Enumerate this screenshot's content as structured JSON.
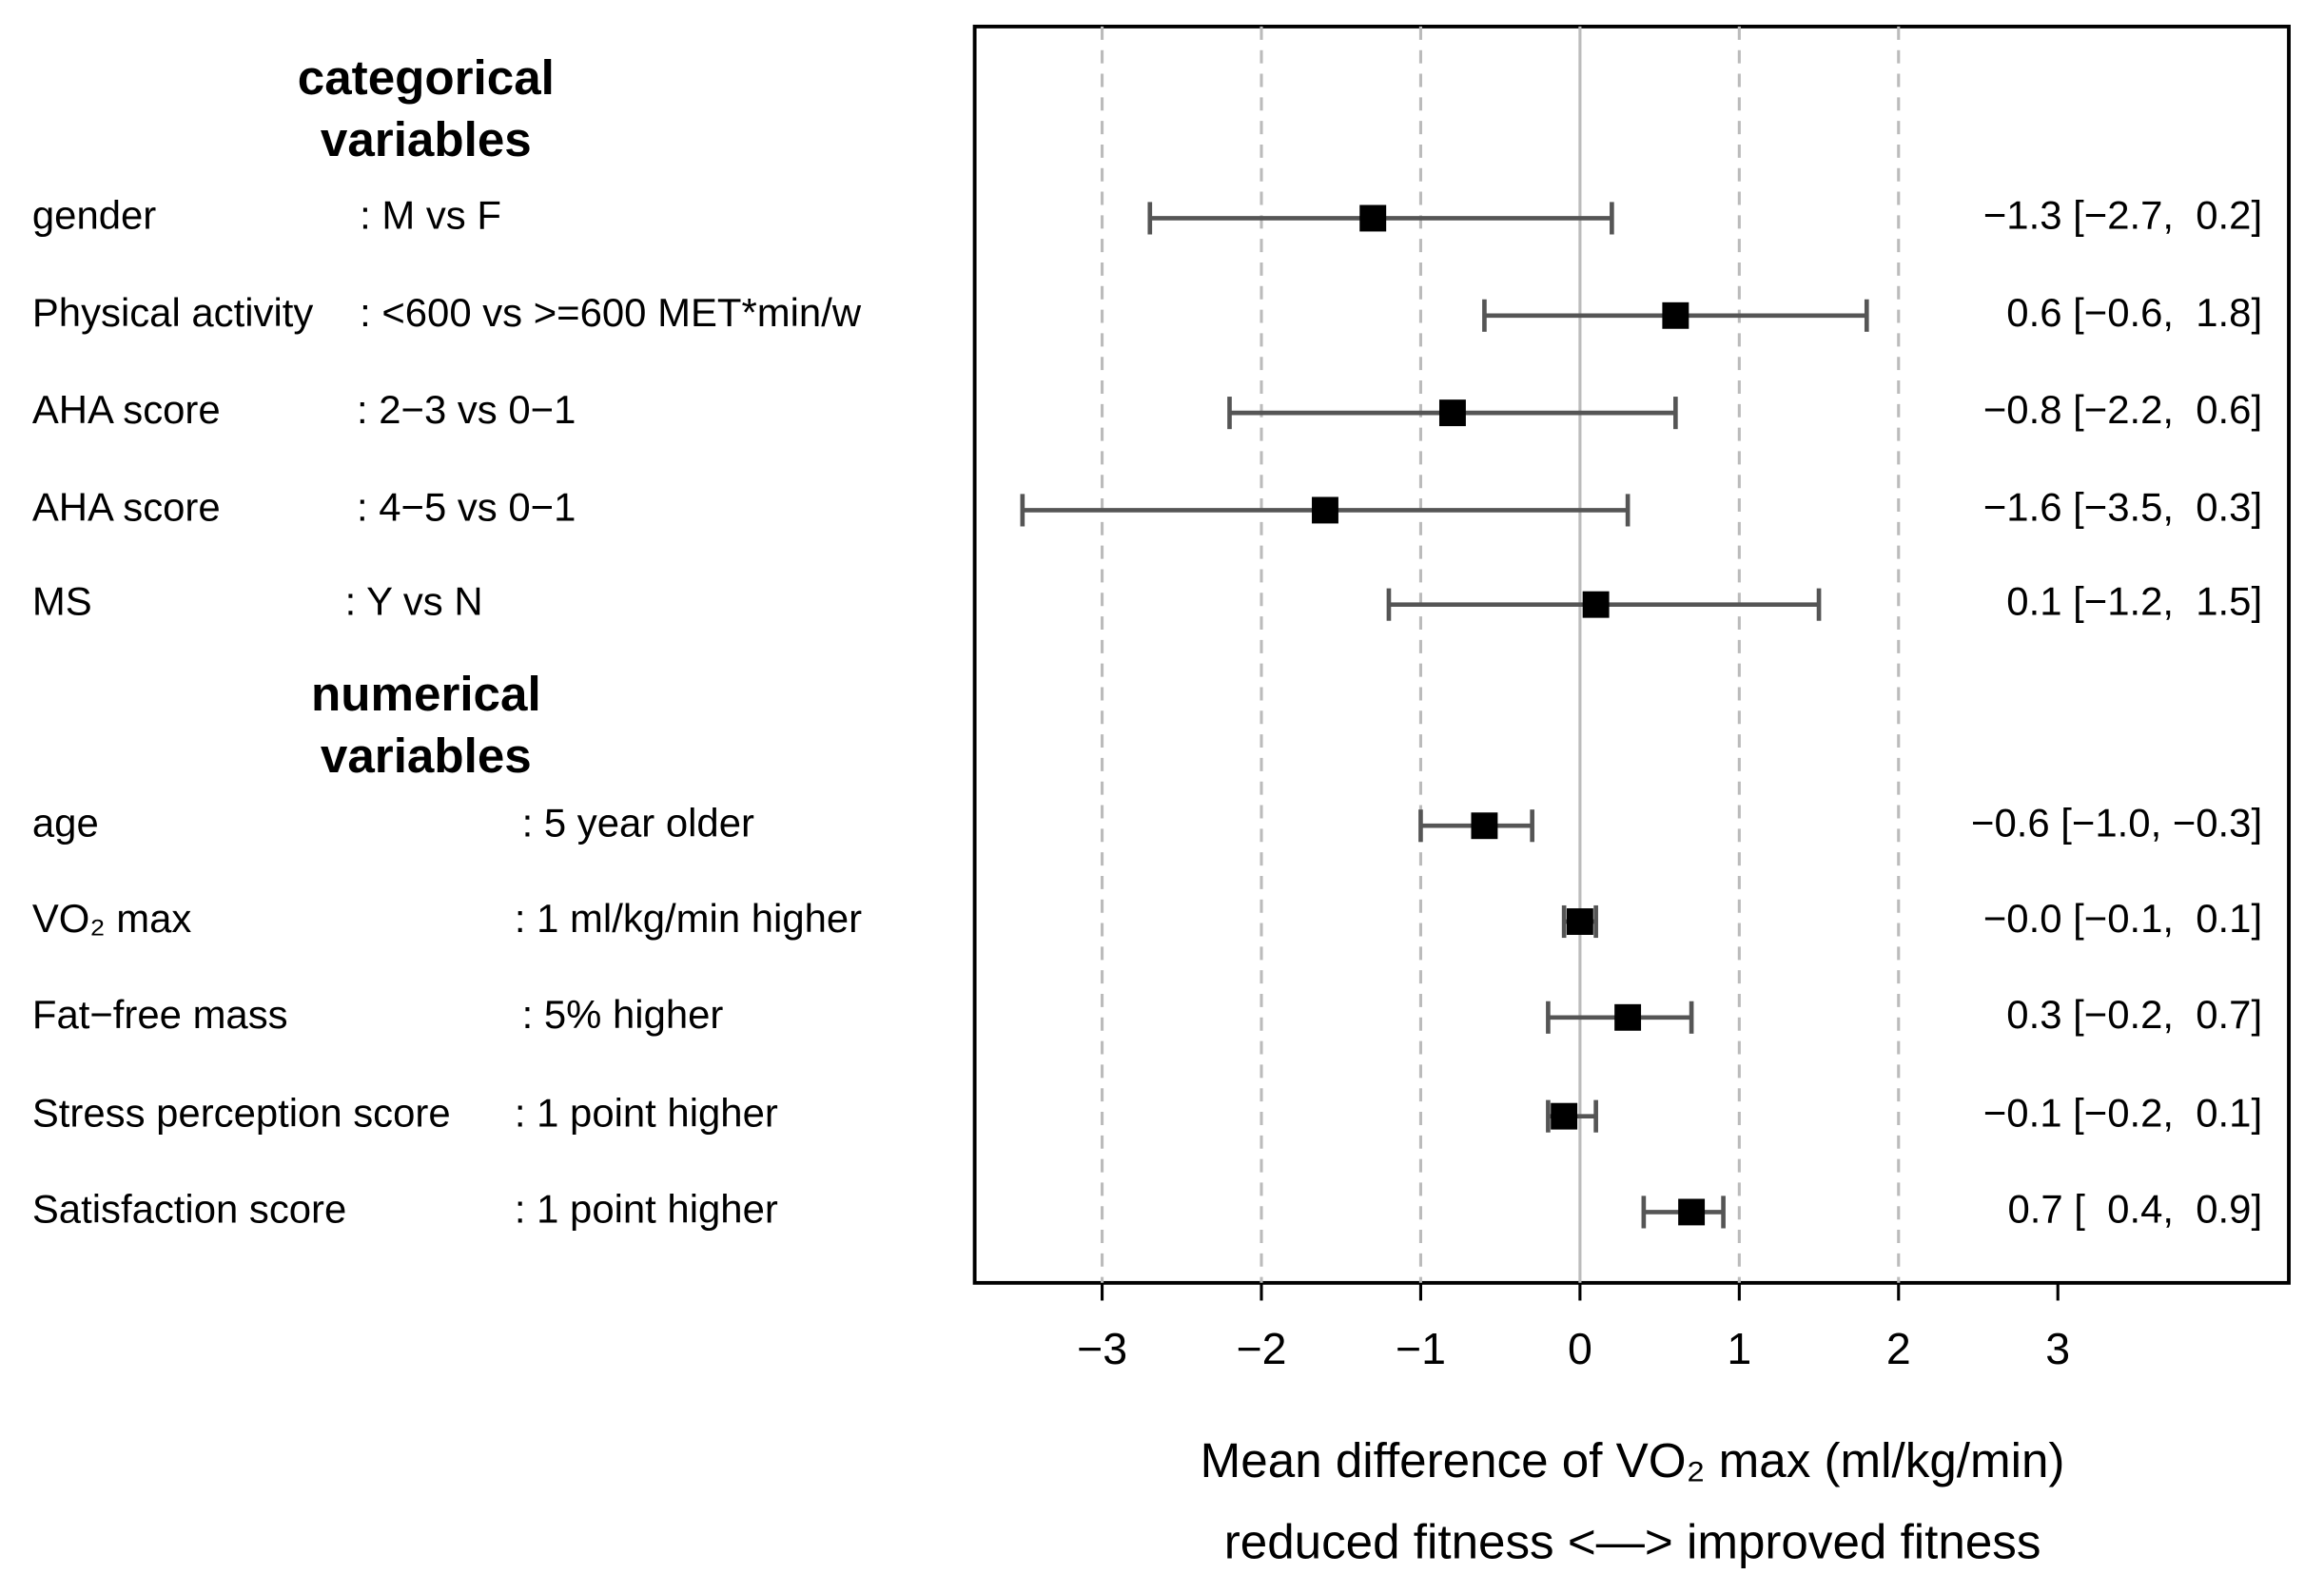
{
  "chart_data": {
    "type": "forest",
    "groups": [
      {
        "title": [
          "categorical",
          "variables"
        ]
      },
      {
        "title": [
          "numerical",
          "variables"
        ]
      }
    ],
    "categories": [
      "gender",
      "Physical activity",
      "AHA score",
      "AHA score",
      "MS",
      "age",
      "VO₂ max",
      "Fat−free mass",
      "Stress perception score",
      "Satisfaction score"
    ],
    "comparisons": [
      ": M vs F",
      ": <600 vs >=600 MET*min/w",
      ": 2−3 vs 0−1",
      ": 4−5 vs 0−1",
      ": Y vs N",
      ": 5 year older",
      ": 1 ml/kg/min higher",
      ": 5% higher",
      ": 1 point higher",
      ": 1 point higher"
    ],
    "estimates": [
      -1.3,
      0.6,
      -0.8,
      -1.6,
      0.1,
      -0.6,
      0,
      0.3,
      -0.1,
      0.7
    ],
    "lower": [
      -2.7,
      -0.6,
      -2.2,
      -3.5,
      -1.2,
      -1.0,
      -0.1,
      -0.2,
      -0.2,
      0.4
    ],
    "upper": [
      0.2,
      1.8,
      0.6,
      0.3,
      1.5,
      -0.3,
      0.1,
      0.7,
      0.1,
      0.9
    ],
    "value_labels": [
      "−1.3 [−2.7,  0.2]",
      "0.6 [−0.6,  1.8]",
      "−0.8 [−2.2,  0.6]",
      "−1.6 [−3.5,  0.3]",
      "0.1 [−1.2,  1.5]",
      "−0.6 [−1.0, −0.3]",
      "−0.0 [−0.1,  0.1]",
      "0.3 [−0.2,  0.7]",
      "−0.1 [−0.2,  0.1]",
      "0.7 [  0.4,  0.9]"
    ],
    "color": "#000000",
    "whisker_color": "#555555",
    "xlim": [
      -3.8,
      4.45
    ],
    "xticks": [
      {
        "value": -3,
        "label": "−3"
      },
      {
        "value": -2,
        "label": "−2"
      },
      {
        "value": -1,
        "label": "−1"
      },
      0,
      1,
      2,
      3
    ],
    "gridlines": [
      -3,
      -2,
      -1,
      1,
      2
    ],
    "reference_line": 0,
    "xlabel": [
      "Mean difference of VO₂ max (ml/kg/min)",
      "reduced fitness <—> improved fitness"
    ]
  }
}
